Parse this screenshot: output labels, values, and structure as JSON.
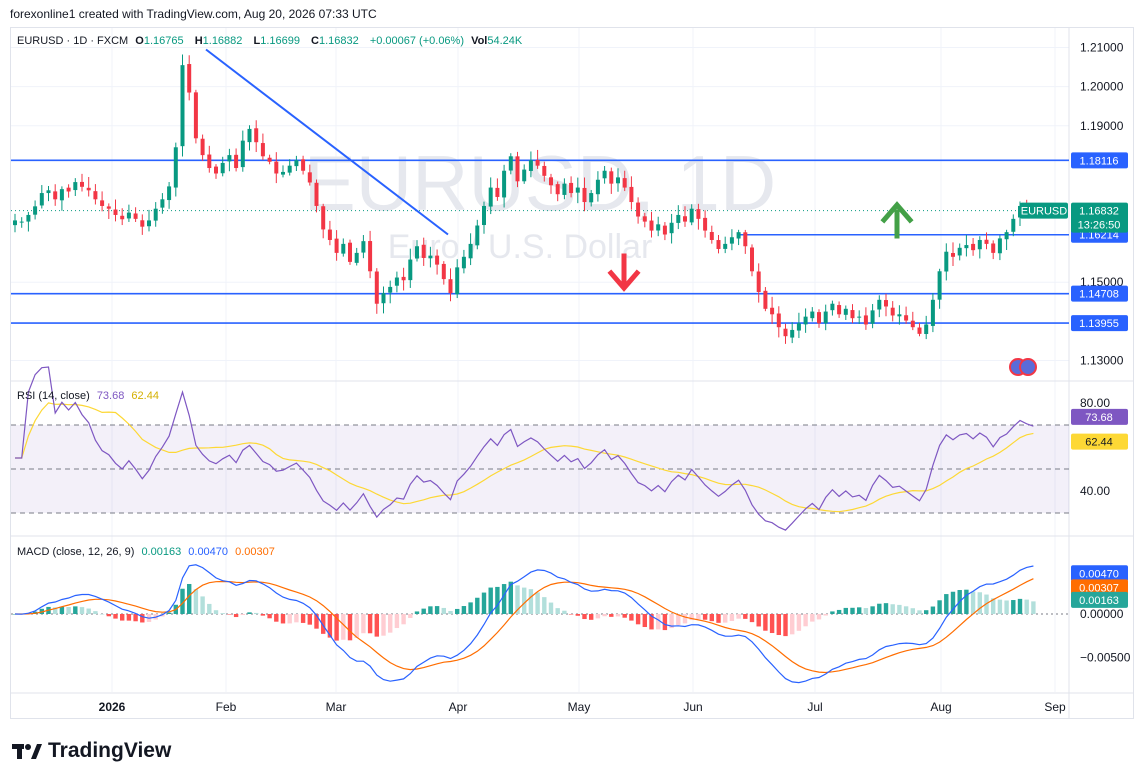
{
  "caption": "forexonline1 created with TradingView.com, Aug 20, 2026 07:33 UTC",
  "footer_logo": "TradingView",
  "watermark": {
    "symbol": "EURUSD, 1D",
    "description": "Euro / U.S. Dollar"
  },
  "legend": {
    "symbol": "EURUSD · 1D · FXCM",
    "o_label": "O",
    "o": "1.16765",
    "h_label": "H",
    "h": "1.16882",
    "l_label": "L",
    "l": "1.16699",
    "c_label": "C",
    "c": "1.16832",
    "change": "+0.00067 (+0.06%)",
    "vol_label": "Vol",
    "vol": "54.24K"
  },
  "rsi_legend": {
    "name": "RSI (14, close)",
    "rsi": "73.68",
    "ma": "62.44"
  },
  "macd_legend": {
    "name": "MACD (close, 12, 26, 9)",
    "hist": "0.00163",
    "macd": "0.00470",
    "signal": "0.00307"
  },
  "price_labels": {
    "symbol_tag": "EURUSD",
    "last": "1.16832",
    "countdown": "13:26:50"
  },
  "colors": {
    "up": "#089981",
    "down": "#f23645",
    "line": "#2962ff",
    "rsi": "#7e57c2",
    "rsi_ma": "#fdd835",
    "macd_signal": "#ff6d00"
  },
  "chart_data": [
    {
      "type": "candlestick",
      "symbol": "EURUSD",
      "timeframe": "1D",
      "x_ticks": [
        "2026",
        "Feb",
        "Mar",
        "Apr",
        "May",
        "Jun",
        "Jul",
        "Aug",
        "Sep"
      ],
      "y_ticks": [
        "1.21000",
        "1.20000",
        "1.19000",
        "1.15000",
        "1.13000"
      ],
      "ylim": [
        1.125,
        1.215
      ],
      "horizontal_levels": [
        "1.18116",
        "1.16214",
        "1.14708",
        "1.13955"
      ],
      "level_values": [
        1.18116,
        1.16214,
        1.14708,
        1.13955
      ],
      "last_price": 1.16832,
      "trendline": {
        "from": {
          "date": "2026-01-26",
          "price": 1.2095
        },
        "to": {
          "date": "2026-03-31",
          "price": 1.1622
        }
      },
      "annotations": [
        "green up arrow",
        "red down arrow"
      ],
      "closes": [
        1.1658,
        1.1655,
        1.1672,
        1.1694,
        1.1728,
        1.1735,
        1.1712,
        1.1738,
        1.1732,
        1.1756,
        1.1744,
        1.1735,
        1.1712,
        1.1695,
        1.1688,
        1.1672,
        1.1661,
        1.1678,
        1.1662,
        1.1642,
        1.1658,
        1.1688,
        1.1712,
        1.1745,
        1.1845,
        1.2055,
        1.1985,
        1.1868,
        1.1825,
        1.1792,
        1.1778,
        1.1805,
        1.1825,
        1.1792,
        1.1862,
        1.1892,
        1.1858,
        1.1822,
        1.1808,
        1.1778,
        1.1782,
        1.1798,
        1.1812,
        1.1785,
        1.1755,
        1.1695,
        1.1635,
        1.1608,
        1.1575,
        1.1598,
        1.1552,
        1.1575,
        1.1605,
        1.1528,
        1.1445,
        1.1472,
        1.1488,
        1.1512,
        1.1505,
        1.1558,
        1.1592,
        1.1562,
        1.1568,
        1.1545,
        1.1508,
        1.1472,
        1.1538,
        1.1565,
        1.1598,
        1.1645,
        1.1695,
        1.1742,
        1.1718,
        1.1785,
        1.1822,
        1.1758,
        1.1788,
        1.1812,
        1.1798,
        1.1772,
        1.1748,
        1.1725,
        1.1752,
        1.1728,
        1.1742,
        1.1705,
        1.1728,
        1.1762,
        1.1785,
        1.1752,
        1.1768,
        1.1742,
        1.1705,
        1.1668,
        1.1655,
        1.1632,
        1.1648,
        1.1622,
        1.1652,
        1.1672,
        1.1655,
        1.1688,
        1.1662,
        1.1632,
        1.1608,
        1.1585,
        1.1598,
        1.1615,
        1.1628,
        1.1592,
        1.1528,
        1.1475,
        1.1432,
        1.1418,
        1.1385,
        1.1362,
        1.1378,
        1.1395,
        1.1412,
        1.1425,
        1.1395,
        1.1425,
        1.1445,
        1.1418,
        1.1432,
        1.1408,
        1.1412,
        1.1392,
        1.1428,
        1.1455,
        1.1438,
        1.1415,
        1.1418,
        1.1402,
        1.1385,
        1.1368,
        1.1392,
        1.1455,
        1.1528,
        1.1578,
        1.1565,
        1.1588,
        1.1595,
        1.1582,
        1.1608,
        1.1598,
        1.1575,
        1.1612,
        1.1628,
        1.1662,
        1.1695,
        1.1688,
        1.1683
      ]
    },
    {
      "type": "line",
      "name": "RSI (14, close)",
      "ylim": [
        20,
        90
      ],
      "y_ticks": [
        "80.00",
        "40.00"
      ],
      "bands": {
        "upper": 70,
        "middle": 50,
        "lower": 30
      },
      "last": {
        "rsi": 73.68,
        "ma": 62.44
      }
    },
    {
      "type": "bar",
      "name": "MACD (close, 12, 26, 9)",
      "ylim": [
        -0.009,
        0.009
      ],
      "y_ticks": [
        "0.00000",
        "−0.00500"
      ],
      "last": {
        "histogram": 0.00163,
        "macd": 0.0047,
        "signal": 0.00307
      }
    }
  ]
}
